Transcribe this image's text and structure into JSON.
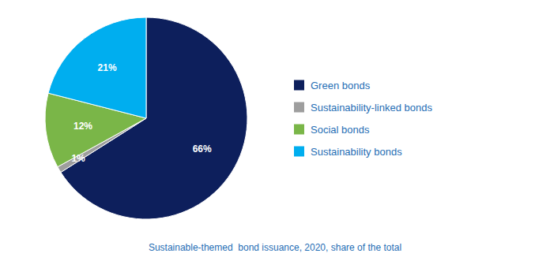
{
  "chart_data": {
    "type": "pie",
    "caption": "Sustainable-themed  bond issuance, 2020, share of the total",
    "categories": [
      "Green bonds",
      "Sustainability-linked bonds",
      "Social bonds",
      "Sustainability bonds"
    ],
    "values": [
      66,
      1,
      12,
      21
    ],
    "value_labels": [
      "66%",
      "1%",
      "12%",
      "21%"
    ],
    "colors": [
      "#0d1f5c",
      "#9e9e9e",
      "#7ab648",
      "#00aeef"
    ],
    "data_labels": true
  }
}
